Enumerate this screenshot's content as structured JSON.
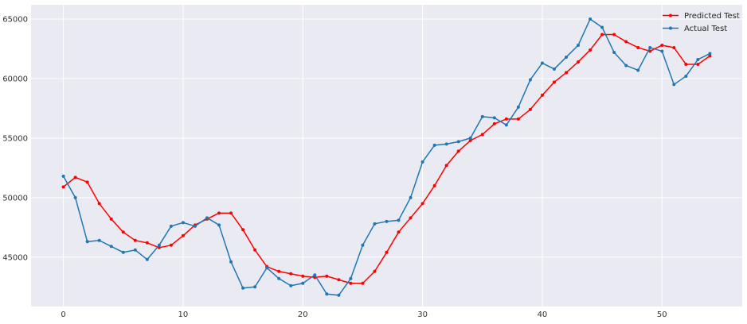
{
  "chart_data": {
    "type": "line",
    "title": "",
    "xlabel": "",
    "ylabel": "",
    "x": [
      0,
      1,
      2,
      3,
      4,
      5,
      6,
      7,
      8,
      9,
      10,
      11,
      12,
      13,
      14,
      15,
      16,
      17,
      18,
      19,
      20,
      21,
      22,
      23,
      24,
      25,
      26,
      27,
      28,
      29,
      30,
      31,
      32,
      33,
      34,
      35,
      36,
      37,
      38,
      39,
      40,
      41,
      42,
      43,
      44,
      45,
      46,
      47,
      48,
      49,
      50,
      51,
      52,
      53,
      54
    ],
    "xlim": [
      -2.7,
      56.7
    ],
    "ylim": [
      40850,
      66200
    ],
    "xticks": [
      0,
      10,
      20,
      30,
      40,
      50
    ],
    "yticks": [
      45000,
      50000,
      55000,
      60000,
      65000
    ],
    "grid": true,
    "legend_position": "top-right",
    "series": [
      {
        "name": "Predicted Test",
        "color": "#ff0000",
        "values": [
          50900,
          51700,
          51300,
          49500,
          48200,
          47100,
          46400,
          46200,
          45800,
          46000,
          46800,
          47700,
          48200,
          48700,
          48700,
          47300,
          45600,
          44200,
          43800,
          43600,
          43400,
          43300,
          43400,
          43100,
          42800,
          42800,
          43800,
          45400,
          47100,
          48300,
          49500,
          51000,
          52700,
          53900,
          54800,
          55300,
          56200,
          56600,
          56600,
          57400,
          58600,
          59700,
          60500,
          61400,
          62400,
          63700,
          63700,
          63100,
          62600,
          62300,
          62800,
          62600,
          61200,
          61200,
          61900
        ]
      },
      {
        "name": "Actual Test",
        "color": "#1f77b4",
        "values": [
          51800,
          50000,
          46300,
          46400,
          45900,
          45400,
          45600,
          44800,
          46000,
          47600,
          47900,
          47600,
          48300,
          47700,
          44600,
          42400,
          42500,
          44100,
          43200,
          42600,
          42800,
          43500,
          41900,
          41800,
          43200,
          46000,
          47800,
          48000,
          48100,
          50000,
          53000,
          54400,
          54500,
          54700,
          55000,
          56800,
          56700,
          56100,
          57600,
          59900,
          61300,
          60800,
          61800,
          62800,
          65000,
          64300,
          62200,
          61100,
          60700,
          62600,
          62300,
          59500,
          60200,
          61600,
          62100
        ]
      }
    ]
  }
}
